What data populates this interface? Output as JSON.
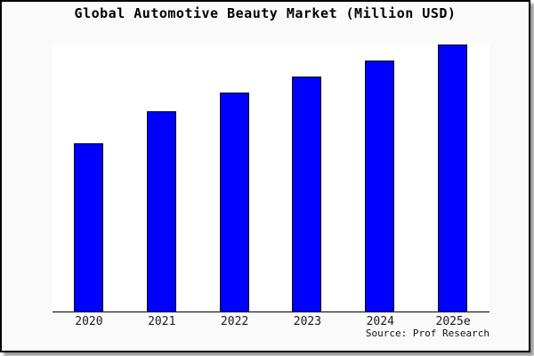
{
  "window": {
    "title": "Global Automotive Beauty Market (Million USD)"
  },
  "chart_data": {
    "type": "bar",
    "title": "Global Automotive Beauty Market (Million USD)",
    "categories": [
      "2020",
      "2021",
      "2022",
      "2023",
      "2024",
      "2025e"
    ],
    "values": [
      63,
      75,
      82,
      88,
      94,
      100
    ],
    "value_scale": "relative index, max bar = 100 (y-axis has no tick labels in chart)",
    "xlabel": "",
    "ylabel": "",
    "ylim": [
      0,
      100
    ],
    "grid": false,
    "legend": "none",
    "bar_color": "#0000ff",
    "bar_border_color": "#000000",
    "source_note": "Source: Prof Research"
  },
  "colors": {
    "canvas_background": "#fafafa",
    "plot_background": "#ffffff",
    "bar_fill": "#0000ff",
    "frame_border": "#000000",
    "text": "#111111",
    "shadow": "#999999"
  }
}
